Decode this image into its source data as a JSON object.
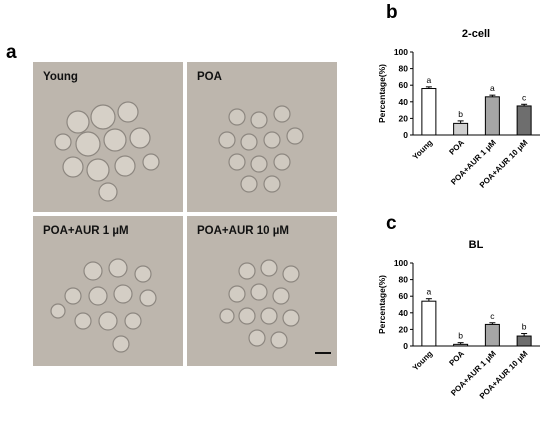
{
  "panels": {
    "a": "a",
    "b": "b",
    "c": "c"
  },
  "micrographs": [
    {
      "label": "Young"
    },
    {
      "label": "POA"
    },
    {
      "label": "POA+AUR 1 µM"
    },
    {
      "label": "POA+AUR 10 µM"
    }
  ],
  "chart_data": [
    {
      "type": "bar",
      "title": "2-cell",
      "ylabel": "Percentage(%)",
      "ylim": [
        0,
        100
      ],
      "yticks": [
        0,
        20,
        40,
        60,
        80,
        100
      ],
      "categories": [
        "Young",
        "POA",
        "POA+AUR 1 μM",
        "POA+AUR 10 μM"
      ],
      "values": [
        56,
        14,
        46,
        35
      ],
      "errors": [
        2,
        3,
        2,
        2
      ],
      "letters": [
        "a",
        "b",
        "a",
        "c"
      ],
      "colors": [
        "#ffffff",
        "#d0d0d0",
        "#a6a6a6",
        "#6e6e6e"
      ]
    },
    {
      "type": "bar",
      "title": "BL",
      "ylabel": "Percentage(%)",
      "ylim": [
        0,
        100
      ],
      "yticks": [
        0,
        20,
        40,
        60,
        80,
        100
      ],
      "categories": [
        "Young",
        "POA",
        "POA+AUR 1 μM",
        "POA+AUR 10 μM"
      ],
      "values": [
        54,
        2,
        26,
        12
      ],
      "errors": [
        3,
        2,
        2,
        3
      ],
      "letters": [
        "a",
        "b",
        "c",
        "b"
      ],
      "colors": [
        "#ffffff",
        "#d0d0d0",
        "#a6a6a6",
        "#6e6e6e"
      ]
    }
  ]
}
